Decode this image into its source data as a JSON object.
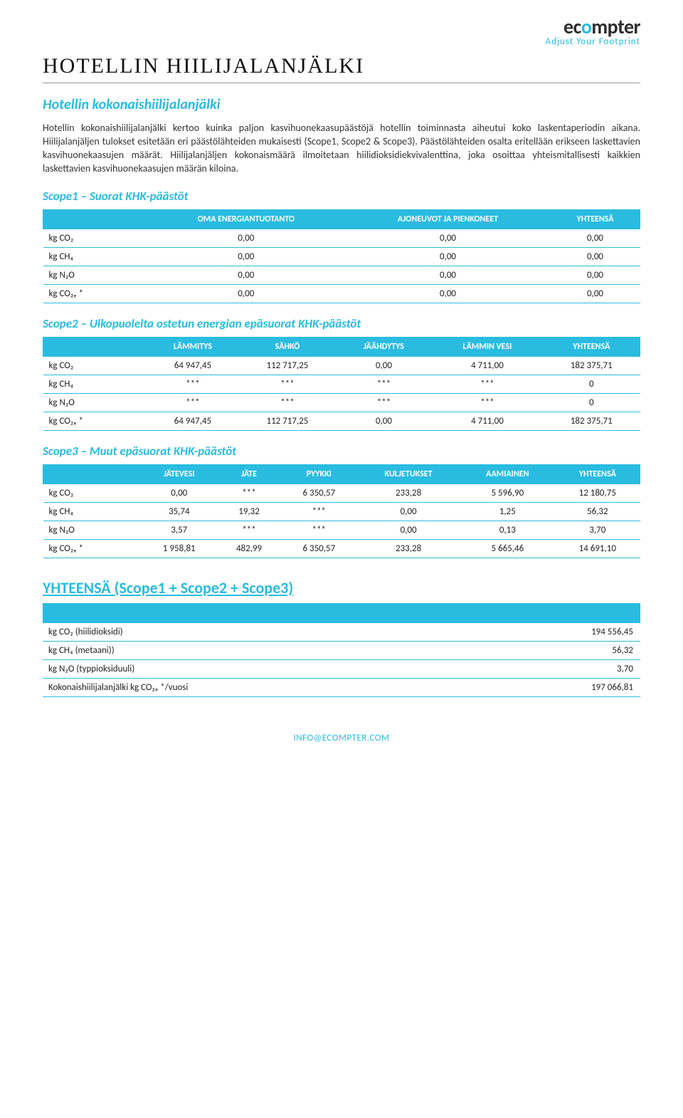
{
  "logo": {
    "brand": "ecompter",
    "tagline": "Adjust Your Footprint"
  },
  "title": "HOTELLIN HIILIJALANJÄLKI",
  "subtitle": "Hotellin kokonaishiilijalanjälki",
  "bodyText": "Hotellin kokonaishiilijalanjälki kertoo kuinka paljon kasvihuonekaasupäästöjä hotellin toiminnasta aiheutui koko laskentaperiodin aikana. Hiilijalanjäljen tulokset esitetään eri päästölähteiden mukaisesti (Scope1, Scope2 & Scope3). Päästölähteiden osalta eritellään erikseen laskettavien kasvihuonekaasujen määrät. Hiilijalanjäljen kokonaismäärä ilmoitetaan hiilidioksidiekvivalenttina, joka osoittaa yhteismitallisesti kaikkien laskettavien kasvihuonekaasujen määrän kiloina.",
  "scope1": {
    "heading": "Scope1 – Suorat KHK-päästöt",
    "columns": [
      "",
      "OMA ENERGIANTUOTANTO",
      "AJONEUVOT JA PIENKONEET",
      "YHTEENSÄ"
    ],
    "rows": [
      {
        "label": "kg CO₂",
        "cells": [
          "0,00",
          "0,00",
          "0,00"
        ]
      },
      {
        "label": "kg CH₄",
        "cells": [
          "0,00",
          "0,00",
          "0,00"
        ]
      },
      {
        "label": "kg N₂O",
        "cells": [
          "0,00",
          "0,00",
          "0,00"
        ]
      },
      {
        "label": "kg CO₂ₑ *",
        "cells": [
          "0,00",
          "0,00",
          "0,00"
        ]
      }
    ]
  },
  "scope2": {
    "heading": "Scope2 – Ulkopuolelta ostetun energian epäsuorat KHK-päästöt",
    "columns": [
      "",
      "LÄMMITYS",
      "SÄHKÖ",
      "JÄÄHDYTYS",
      "LÄMMIN VESI",
      "YHTEENSÄ"
    ],
    "rows": [
      {
        "label": "kg CO₂",
        "cells": [
          "64 947,45",
          "112 717,25",
          "0,00",
          "4 711,00",
          "182 375,71"
        ]
      },
      {
        "label": "kg CH₄",
        "cells": [
          "***",
          "***",
          "***",
          "***",
          "0"
        ]
      },
      {
        "label": "kg N₂O",
        "cells": [
          "***",
          "***",
          "***",
          "***",
          "0"
        ]
      },
      {
        "label": "kg CO₂ₑ *",
        "cells": [
          "64 947,45",
          "112 717,25",
          "0,00",
          "4 711,00",
          "182 375,71"
        ]
      }
    ]
  },
  "scope3": {
    "heading": "Scope3 – Muut epäsuorat KHK-päästöt",
    "columns": [
      "",
      "JÄTEVESI",
      "JÄTE",
      "PYYKKI",
      "KULJETUKSET",
      "AAMIAINEN",
      "YHTEENSÄ"
    ],
    "rows": [
      {
        "label": "kg CO₂",
        "cells": [
          "0,00",
          "***",
          "6 350,57",
          "233,28",
          "5 596,90",
          "12 180,75"
        ]
      },
      {
        "label": "kg CH₄",
        "cells": [
          "35,74",
          "19,32",
          "***",
          "0,00",
          "1,25",
          "56,32"
        ]
      },
      {
        "label": "kg N₂O",
        "cells": [
          "3,57",
          "***",
          "***",
          "0,00",
          "0,13",
          "3,70"
        ]
      },
      {
        "label": "kg CO₂ₑ *",
        "cells": [
          "1 958,81",
          "482,99",
          "6 350,57",
          "233,28",
          "5 665,46",
          "14 691,10"
        ]
      }
    ]
  },
  "totals": {
    "heading": "YHTEENSÄ (Scope1 + Scope2 + Scope3)",
    "rows": [
      {
        "label": "kg CO₂ (hiilidioksidi)",
        "value": "194 556,45"
      },
      {
        "label": "kg CH₄ (metaani))",
        "value": "56,32"
      },
      {
        "label": "kg N₂O (typpioksiduuli)",
        "value": "3,70"
      },
      {
        "label": "Kokonaishiilijalanjälki kg CO₂ₑ */vuosi",
        "value": "197 066,81"
      }
    ]
  },
  "footer": "INFO@ECOMPTER.COM",
  "colors": {
    "accent": "#29bce0",
    "text": "#333333",
    "background": "#ffffff"
  }
}
